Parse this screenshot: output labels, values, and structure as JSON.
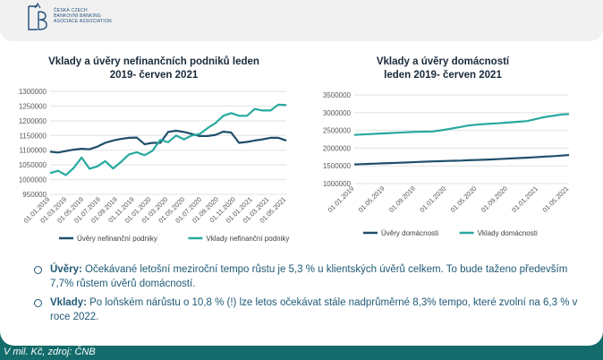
{
  "logo": {
    "mark": "ČBA",
    "lines": [
      "ČESKÁ CZECH",
      "BANKOVNÍ BANKING",
      "ASOCIACE ASSOCIATION"
    ]
  },
  "colors": {
    "uvery": "#1f4e6b",
    "vklady": "#27a9a0",
    "bg": "#146b6b",
    "grid": "#e3e3e3"
  },
  "chart_data": [
    {
      "type": "line",
      "title": "Vklady a úvěry nefinančních podniků leden 2019- červen 2021",
      "title_lines": [
        "Vklady a úvěry nefinančních podniků leden",
        "2019- červen 2021"
      ],
      "ylim": [
        950000,
        1300000
      ],
      "yticks": [
        950000,
        1000000,
        1050000,
        1100000,
        1150000,
        1200000,
        1250000,
        1300000
      ],
      "ytick_labels": [
        "950000",
        "1000000",
        "1050000",
        "1100000",
        "1150000",
        "1200000",
        "1250000",
        "1300000"
      ],
      "xtick_labels": [
        "01.01.2019",
        "01.03.2019",
        "01.05.2019",
        "01.07.2019",
        "01.09.2019",
        "01.11.2019",
        "01.01.2020",
        "01.03.2020",
        "01.05.2020",
        "01.07.2020",
        "01.09.2020",
        "01.11.2020",
        "01.01.2021",
        "01.03.2021",
        "01.05.2021"
      ],
      "series": [
        {
          "name": "Úvěry nefinanční podniky",
          "values": [
            1095000,
            1092000,
            1097000,
            1102000,
            1105000,
            1103000,
            1112000,
            1125000,
            1133000,
            1138000,
            1142000,
            1143000,
            1120000,
            1125000,
            1125000,
            1162000,
            1166000,
            1162000,
            1155000,
            1148000,
            1148000,
            1152000,
            1163000,
            1160000,
            1125000,
            1128000,
            1133000,
            1137000,
            1142000,
            1142000,
            1133000
          ]
        },
        {
          "name": "Vklady nefinanční podniky",
          "values": [
            1022000,
            1030000,
            1015000,
            1040000,
            1075000,
            1037000,
            1045000,
            1063000,
            1038000,
            1060000,
            1085000,
            1093000,
            1083000,
            1098000,
            1135000,
            1127000,
            1150000,
            1137000,
            1150000,
            1155000,
            1175000,
            1192000,
            1217000,
            1226000,
            1217000,
            1217000,
            1240000,
            1235000,
            1235000,
            1255000,
            1253000
          ]
        }
      ]
    },
    {
      "type": "line",
      "title": "Vklady a úvěry domácností leden 2019- červen 2021",
      "title_lines": [
        "Vklady a úvěry domácností",
        "leden 2019- červen 2021"
      ],
      "ylim": [
        1000000,
        3500000
      ],
      "yticks": [
        1000000,
        1500000,
        2000000,
        2500000,
        3000000,
        3500000
      ],
      "ytick_labels": [
        "1000000",
        "1500000",
        "2000000",
        "2500000",
        "3000000",
        "3500000"
      ],
      "xtick_labels": [
        "01.01.2019",
        "01.05.2019",
        "01.09.2019",
        "01.01.2020",
        "01.05.2020",
        "01.09.2020",
        "01.01.2021",
        "01.05.2021"
      ],
      "series": [
        {
          "name": "Úvěry domácnosti",
          "values": [
            1540000,
            1548000,
            1555000,
            1562000,
            1570000,
            1578000,
            1586000,
            1594000,
            1602000,
            1610000,
            1618000,
            1626000,
            1632000,
            1638000,
            1644000,
            1650000,
            1658000,
            1665000,
            1672000,
            1680000,
            1690000,
            1700000,
            1710000,
            1720000,
            1730000,
            1740000,
            1752000,
            1764000,
            1776000,
            1790000,
            1805000
          ]
        },
        {
          "name": "Vklady domácnosti",
          "values": [
            2370000,
            2385000,
            2395000,
            2405000,
            2415000,
            2425000,
            2435000,
            2445000,
            2455000,
            2460000,
            2465000,
            2470000,
            2500000,
            2530000,
            2565000,
            2600000,
            2640000,
            2660000,
            2675000,
            2690000,
            2700000,
            2715000,
            2730000,
            2745000,
            2760000,
            2800000,
            2850000,
            2890000,
            2920000,
            2950000,
            2960000
          ]
        }
      ]
    }
  ],
  "bullets": [
    {
      "label": "Úvěry:",
      "text": " Očekávané letošní meziroční tempo růstu je 5,3 % u klientských úvěrů celkem. To bude taženo především 7,7% růstem úvěrů domácností."
    },
    {
      "label": "Vklady:",
      "text": " Po loňském nárůstu o 10,8 % (!) lze letos očekávat stále nadprůměrné 8,3% tempo, které zvolní na 6,3 % v roce 2022."
    }
  ],
  "footer": "V mil. Kč, zdroj: ČNB"
}
